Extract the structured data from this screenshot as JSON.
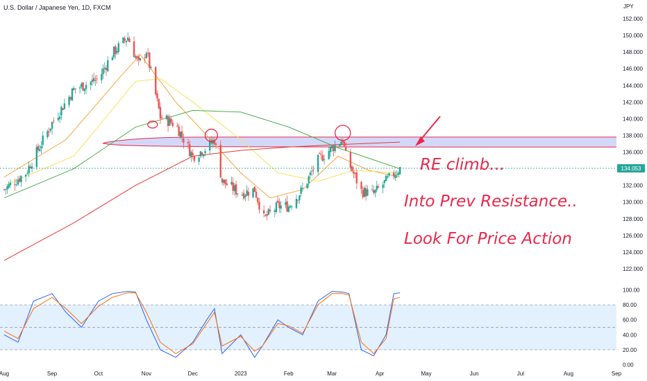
{
  "header": {
    "symbol_title": "U.S. Dollar / Japanese Yen, 1D, FXCM",
    "currency": "JPY"
  },
  "price_label": "134.053",
  "annotations": [
    "RE climb...",
    "Into Prev Resistance..",
    "Look For Price Action"
  ],
  "colors": {
    "up": "#26a69a",
    "down": "#ef5350",
    "ma_fast": "#f7a53b",
    "ma_mid": "#f5e35c",
    "ma_slow": "#4caf50",
    "ma_long": "#e53935",
    "zone_fill": "#c5cbf5",
    "zone_stroke": "#e8294a",
    "annotation": "#e8294a",
    "stoch_k": "#2962ff",
    "stoch_d": "#ff6d00"
  },
  "chart_data": [
    {
      "type": "candlestick",
      "title": "U.S. Dollar / Japanese Yen, 1D, FXCM",
      "x_ticks": [
        "Aug",
        "Sep",
        "Oct",
        "Nov",
        "Dec",
        "2023",
        "Feb",
        "Mar",
        "Apr",
        "May",
        "Jun",
        "Jul",
        "Aug",
        "Sep"
      ],
      "x_range": [
        "2022-08-01",
        "2023-09-01"
      ],
      "y_ticks": [
        122,
        124,
        126,
        128,
        130,
        132,
        134,
        136,
        138,
        140,
        142,
        144,
        146,
        148,
        150,
        152
      ],
      "y_tick_labels": [
        "122.000",
        "124.000",
        "126.000",
        "128.000",
        "130.000",
        "132.000",
        "134.000",
        "136.000",
        "138.000",
        "140.000",
        "142.000",
        "144.000",
        "146.000",
        "148.000",
        "150.000",
        "152.000"
      ],
      "ylim": [
        120.5,
        153
      ],
      "grid": false,
      "last_price": 134.053,
      "series": [
        {
          "name": "USD/JPY close",
          "dates": [
            "2022-08-01",
            "2022-08-15",
            "2022-09-01",
            "2022-09-15",
            "2022-10-01",
            "2022-10-10",
            "2022-10-20",
            "2022-10-27",
            "2022-11-01",
            "2022-11-10",
            "2022-11-20",
            "2022-12-01",
            "2022-12-10",
            "2022-12-15",
            "2022-12-20",
            "2023-01-01",
            "2023-01-10",
            "2023-01-16",
            "2023-01-25",
            "2023-02-01",
            "2023-02-10",
            "2023-02-20",
            "2023-03-01",
            "2023-03-08",
            "2023-03-10",
            "2023-03-20",
            "2023-03-28",
            "2023-04-05",
            "2023-04-14"
          ],
          "values": [
            131.5,
            133.5,
            139.5,
            143.5,
            144.8,
            147.8,
            149.8,
            146.5,
            148.2,
            140.2,
            139.3,
            135.5,
            136.5,
            137.5,
            132.5,
            131.0,
            131.5,
            128.0,
            129.5,
            129.5,
            131.5,
            135.0,
            136.5,
            137.5,
            135.5,
            131.3,
            131.0,
            132.5,
            134.05
          ]
        },
        {
          "name": "MA fast",
          "dates": [
            "2022-08-01",
            "2022-09-10",
            "2022-10-15",
            "2022-10-28",
            "2022-11-20",
            "2022-12-10",
            "2023-01-01",
            "2023-01-20",
            "2023-02-10",
            "2023-03-05",
            "2023-03-25",
            "2023-04-14"
          ],
          "values": [
            133.0,
            137.5,
            145.0,
            147.7,
            142.0,
            138.0,
            133.5,
            130.5,
            131.5,
            135.5,
            133.8,
            133.0
          ]
        },
        {
          "name": "MA mid",
          "dates": [
            "2022-08-01",
            "2022-09-15",
            "2022-10-25",
            "2022-11-10",
            "2022-12-01",
            "2023-01-01",
            "2023-01-25",
            "2023-02-20",
            "2023-03-15",
            "2023-04-14"
          ],
          "values": [
            132.0,
            135.5,
            144.5,
            144.8,
            142.0,
            137.5,
            133.5,
            132.5,
            133.8,
            133.5
          ]
        },
        {
          "name": "MA slow",
          "dates": [
            "2022-08-01",
            "2022-09-15",
            "2022-10-25",
            "2022-12-01",
            "2023-01-01",
            "2023-02-01",
            "2023-03-05",
            "2023-04-14"
          ],
          "values": [
            130.5,
            134.0,
            139.0,
            141.0,
            140.8,
            139.0,
            136.5,
            134.0
          ]
        },
        {
          "name": "MA long",
          "dates": [
            "2022-08-01",
            "2022-09-15",
            "2022-10-25",
            "2022-12-01",
            "2023-01-01",
            "2023-02-01",
            "2023-03-05",
            "2023-04-14"
          ],
          "values": [
            123.0,
            127.5,
            132.0,
            135.5,
            136.2,
            136.6,
            136.9,
            137.2
          ]
        }
      ],
      "resistance_zone": [
        136.6,
        137.8
      ],
      "xlabel": "",
      "ylabel": ""
    },
    {
      "type": "line",
      "x_ticks": [
        "Aug",
        "Sep",
        "Oct",
        "Nov",
        "Dec",
        "2023",
        "Feb",
        "Mar",
        "Apr",
        "May",
        "Jun",
        "Jul",
        "Aug",
        "Sep"
      ],
      "y_ticks": [
        0,
        20,
        40,
        60,
        80,
        100
      ],
      "y_tick_labels": [
        "0.00",
        "20.00",
        "40.00",
        "60.00",
        "80.00",
        "100.00"
      ],
      "ylim": [
        -5,
        105
      ],
      "band": [
        20,
        80
      ],
      "series": [
        {
          "name": "%K",
          "dates": [
            "2022-08-01",
            "2022-08-10",
            "2022-08-20",
            "2022-09-01",
            "2022-09-10",
            "2022-09-20",
            "2022-10-01",
            "2022-10-10",
            "2022-10-20",
            "2022-10-25",
            "2022-11-01",
            "2022-11-10",
            "2022-11-20",
            "2022-12-01",
            "2022-12-10",
            "2022-12-15",
            "2022-12-20",
            "2023-01-01",
            "2023-01-10",
            "2023-01-15",
            "2023-01-25",
            "2023-02-01",
            "2023-02-10",
            "2023-02-20",
            "2023-03-01",
            "2023-03-08",
            "2023-03-12",
            "2023-03-20",
            "2023-03-28",
            "2023-04-05",
            "2023-04-10",
            "2023-04-14"
          ],
          "values": [
            40,
            30,
            85,
            95,
            70,
            50,
            85,
            95,
            98,
            97,
            60,
            20,
            10,
            30,
            60,
            75,
            15,
            40,
            10,
            25,
            60,
            50,
            40,
            85,
            98,
            97,
            95,
            20,
            12,
            40,
            95,
            96
          ]
        },
        {
          "name": "%D",
          "dates": [
            "2022-08-01",
            "2022-08-10",
            "2022-08-20",
            "2022-09-01",
            "2022-09-10",
            "2022-09-20",
            "2022-10-01",
            "2022-10-10",
            "2022-10-20",
            "2022-10-25",
            "2022-11-01",
            "2022-11-10",
            "2022-11-20",
            "2022-12-01",
            "2022-12-10",
            "2022-12-15",
            "2022-12-20",
            "2023-01-01",
            "2023-01-10",
            "2023-01-15",
            "2023-01-25",
            "2023-02-01",
            "2023-02-10",
            "2023-02-20",
            "2023-03-01",
            "2023-03-08",
            "2023-03-12",
            "2023-03-20",
            "2023-03-28",
            "2023-04-05",
            "2023-04-10",
            "2023-04-14"
          ],
          "values": [
            45,
            35,
            75,
            90,
            75,
            55,
            78,
            90,
            96,
            96,
            70,
            30,
            15,
            28,
            55,
            70,
            25,
            38,
            18,
            25,
            55,
            52,
            42,
            80,
            95,
            95,
            93,
            30,
            15,
            35,
            88,
            90
          ]
        }
      ]
    }
  ]
}
